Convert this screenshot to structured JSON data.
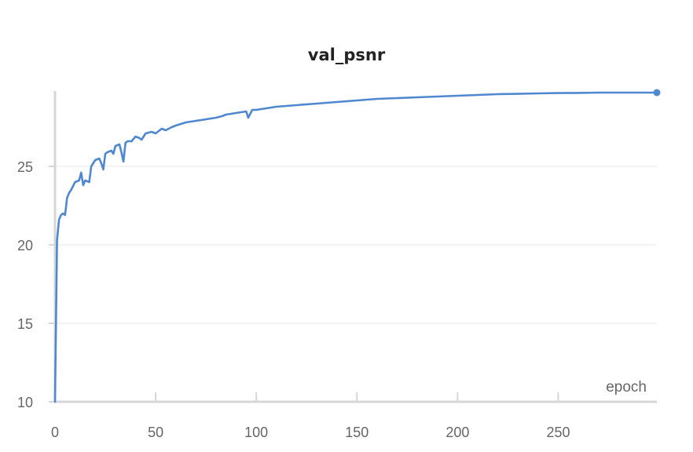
{
  "chart_data": {
    "type": "line",
    "title": "val_psnr",
    "xlabel": "epoch",
    "ylabel": "",
    "xlim": [
      0,
      299
    ],
    "ylim": [
      10,
      29.8
    ],
    "x_ticks": [
      "0",
      "50",
      "100",
      "150",
      "200",
      "250"
    ],
    "y_ticks": [
      "10",
      "15",
      "20",
      "25"
    ],
    "grid": true,
    "legend": "none",
    "series": [
      {
        "color": "#5088d0",
        "x": [
          0,
          1,
          2,
          3,
          4,
          5,
          6,
          7,
          8,
          10,
          12,
          13,
          14,
          15,
          17,
          18,
          20,
          22,
          23,
          24,
          25,
          26,
          28,
          29,
          30,
          32,
          33,
          34,
          35,
          36,
          38,
          40,
          42,
          43,
          45,
          48,
          50,
          53,
          55,
          58,
          60,
          65,
          70,
          75,
          80,
          83,
          85,
          90,
          95,
          96,
          98,
          100,
          110,
          120,
          130,
          140,
          150,
          160,
          170,
          180,
          190,
          200,
          210,
          220,
          230,
          240,
          250,
          260,
          270,
          280,
          290,
          299
        ],
        "y": [
          10.0,
          20.3,
          21.6,
          21.9,
          22.0,
          21.9,
          23.0,
          23.3,
          23.5,
          24.0,
          24.1,
          24.6,
          23.8,
          24.1,
          24.0,
          25.0,
          25.4,
          25.5,
          25.2,
          24.8,
          25.8,
          25.9,
          26.0,
          25.8,
          26.3,
          26.4,
          25.9,
          25.3,
          26.5,
          26.6,
          26.6,
          26.9,
          26.8,
          26.7,
          27.1,
          27.2,
          27.1,
          27.4,
          27.3,
          27.5,
          27.6,
          27.8,
          27.9,
          28.0,
          28.1,
          28.2,
          28.3,
          28.4,
          28.5,
          28.1,
          28.6,
          28.6,
          28.8,
          28.9,
          29.0,
          29.1,
          29.2,
          29.3,
          29.35,
          29.4,
          29.45,
          29.5,
          29.55,
          29.6,
          29.62,
          29.65,
          29.67,
          29.68,
          29.7,
          29.7,
          29.7,
          29.7
        ]
      }
    ]
  }
}
